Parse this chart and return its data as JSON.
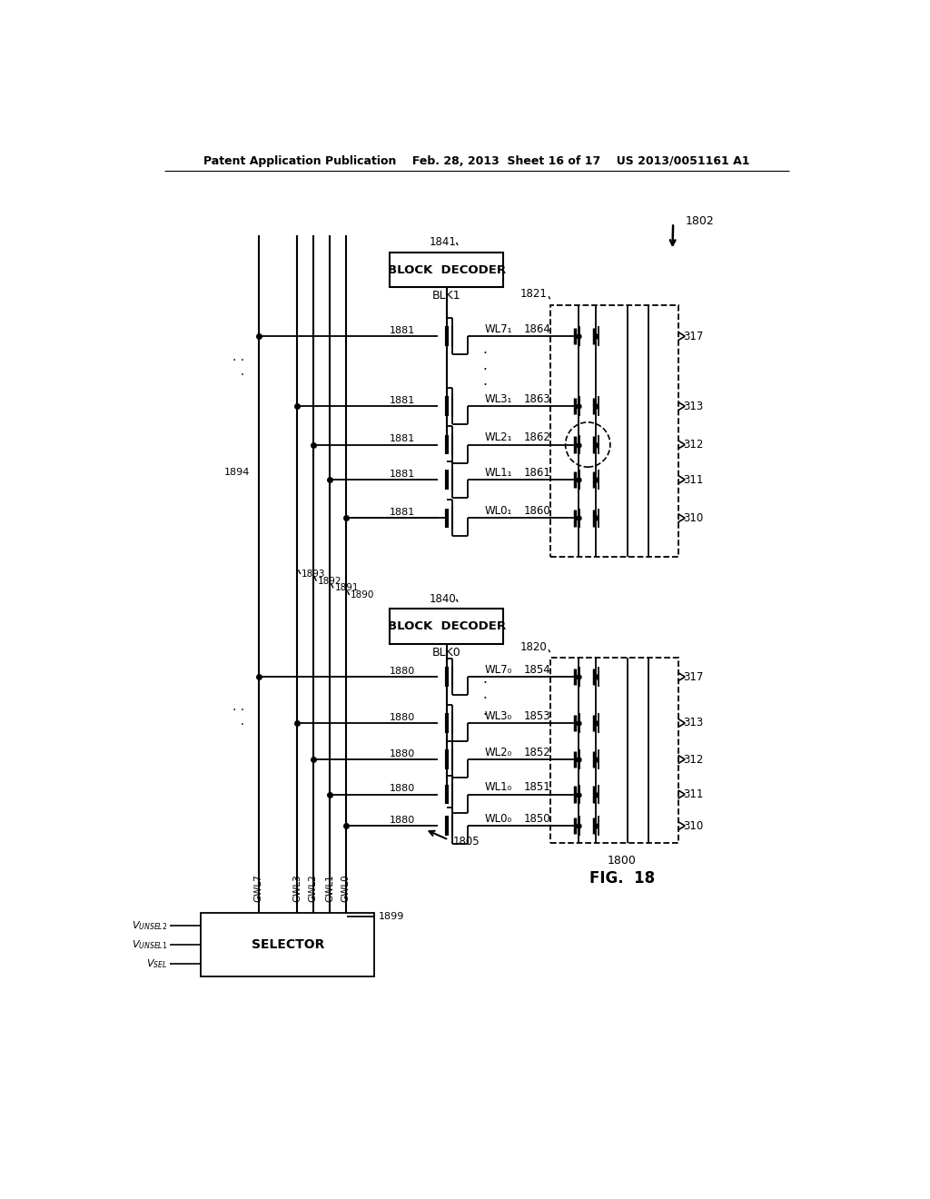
{
  "bg_color": "#ffffff",
  "header": "Patent Application Publication    Feb. 28, 2013  Sheet 16 of 17    US 2013/0051161 A1",
  "fig_label": "FIG. 18",
  "fig_number": "1800"
}
